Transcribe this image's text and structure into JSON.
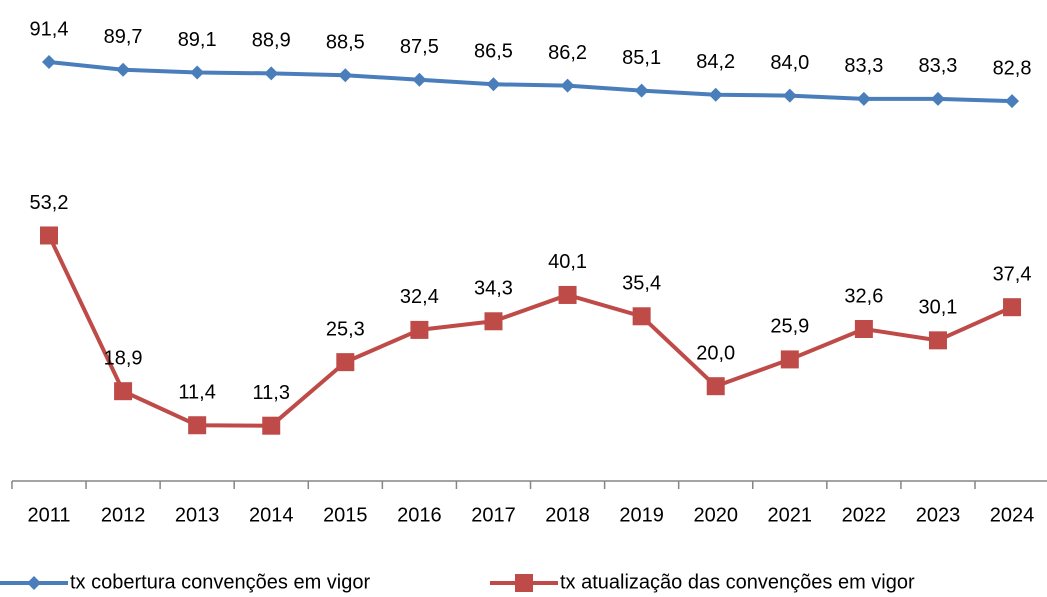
{
  "chart_data": {
    "type": "line",
    "categories": [
      "2011",
      "2012",
      "2013",
      "2014",
      "2015",
      "2016",
      "2017",
      "2018",
      "2019",
      "2020",
      "2021",
      "2022",
      "2023",
      "2024"
    ],
    "series": [
      {
        "name": "tx cobertura convenções em vigor",
        "color": "#4a7ebb",
        "marker": "diamond",
        "values": [
          91.4,
          89.7,
          89.1,
          88.9,
          88.5,
          87.5,
          86.5,
          86.2,
          85.1,
          84.2,
          84.0,
          83.3,
          83.3,
          82.8
        ],
        "value_labels": [
          "91,4",
          "89,7",
          "89,1",
          "88,9",
          "88,5",
          "87,5",
          "86,5",
          "86,2",
          "85,1",
          "84,2",
          "84,0",
          "83,3",
          "83,3",
          "82,8"
        ]
      },
      {
        "name": "tx atualização das convenções em vigor",
        "color": "#be4b48",
        "marker": "square",
        "values": [
          53.2,
          18.9,
          11.4,
          11.3,
          25.3,
          32.4,
          34.3,
          40.1,
          35.4,
          20.0,
          25.9,
          32.6,
          30.1,
          37.4
        ],
        "value_labels": [
          "53,2",
          "18,9",
          "11,4",
          "11,3",
          "25,3",
          "32,4",
          "34,3",
          "40,1",
          "35,4",
          "20,0",
          "25,9",
          "32,6",
          "30,1",
          "37,4"
        ]
      }
    ],
    "ylim": [
      0,
      100
    ],
    "grid": false,
    "legend": "bottom"
  }
}
